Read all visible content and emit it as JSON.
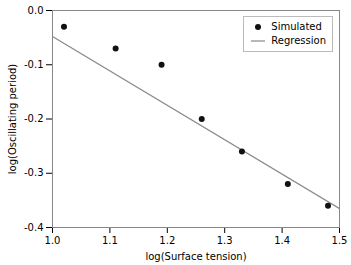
{
  "chart_data": {
    "type": "scatter",
    "xlabel": "log(Surface tension)",
    "ylabel": "log(Oscillating period)",
    "series": [
      {
        "name": "Simulated",
        "type": "scatter",
        "marker": "circle",
        "color": "#111111",
        "x": [
          1.02,
          1.11,
          1.19,
          1.26,
          1.33,
          1.41,
          1.48
        ],
        "values": [
          -0.03,
          -0.07,
          -0.1,
          -0.2,
          -0.26,
          -0.32,
          -0.36
        ]
      },
      {
        "name": "Regression",
        "type": "line",
        "color": "#888888",
        "x": [
          1.0,
          1.5
        ],
        "values": [
          -0.048,
          -0.365
        ]
      }
    ],
    "xlim": [
      1.0,
      1.5
    ],
    "ylim": [
      -0.4,
      0.0
    ],
    "xticks": [
      {
        "value": 1.0,
        "label": "1.0"
      },
      1.1,
      1.2,
      1.3,
      1.4,
      1.5
    ],
    "yticks": [
      {
        "value": 0.0,
        "label": "0.0"
      },
      -0.1,
      -0.2,
      -0.3,
      -0.4
    ],
    "legend": "upper right"
  }
}
